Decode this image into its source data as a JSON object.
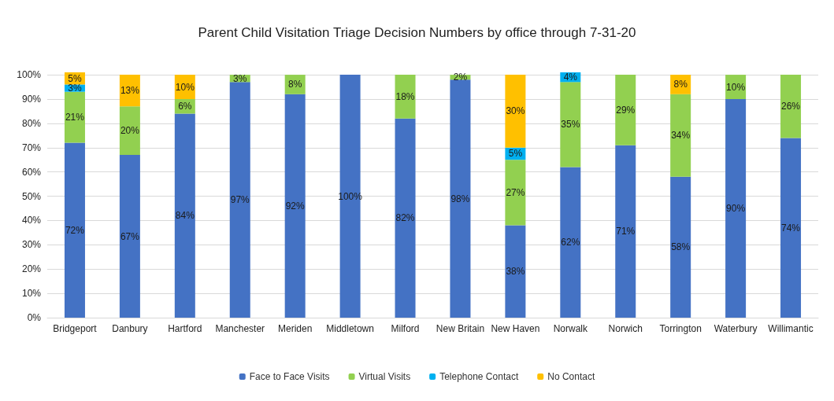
{
  "chart_data": {
    "type": "bar",
    "stacked": true,
    "title": "Parent Child Visitation Triage Decision Numbers by office through 7-31-20",
    "categories": [
      "Bridgeport",
      "Danbury",
      "Hartford",
      "Manchester",
      "Meriden",
      "Middletown",
      "Milford",
      "New Britain",
      "New Haven",
      "Norwalk",
      "Norwich",
      "Torrington",
      "Waterbury",
      "Willimantic"
    ],
    "series": [
      {
        "name": "Face to Face Visits",
        "color": "#4472c4",
        "values": [
          72,
          67,
          84,
          97,
          92,
          100,
          82,
          98,
          38,
          62,
          71,
          58,
          90,
          74
        ],
        "value_labels": [
          "72%",
          "67%",
          "84%",
          "97%",
          "92%",
          "100%",
          "82%",
          "98%",
          "38%",
          "62%",
          "71%",
          "58%",
          "90%",
          "74%"
        ]
      },
      {
        "name": "Virtual Visits",
        "color": "#92d050",
        "values": [
          21,
          20,
          6,
          3,
          8,
          0,
          18,
          2,
          27,
          35,
          29,
          34,
          10,
          26
        ],
        "value_labels": [
          "21%",
          "20%",
          "6%",
          "3%",
          "8%",
          null,
          "18%",
          "2%",
          "27%",
          "35%",
          "29%",
          "34%",
          "10%",
          "26%"
        ]
      },
      {
        "name": "Telephone Contact",
        "color": "#00b0f0",
        "values": [
          3,
          0,
          0,
          0,
          0,
          0,
          0,
          0,
          5,
          4,
          0,
          0,
          0,
          0
        ],
        "value_labels": [
          "3%",
          null,
          null,
          null,
          null,
          null,
          null,
          null,
          "5%",
          "4%",
          null,
          null,
          null,
          null
        ]
      },
      {
        "name": "No Contact",
        "color": "#ffc000",
        "values": [
          5,
          13,
          10,
          0,
          0,
          0,
          0,
          0,
          30,
          0,
          0,
          8,
          0,
          0
        ],
        "value_labels": [
          "5%",
          "13%",
          "10%",
          null,
          null,
          null,
          null,
          null,
          "30%",
          null,
          null,
          "8%",
          null,
          null
        ]
      }
    ],
    "ylim": [
      0,
      101
    ],
    "yticks": [
      {
        "value": 0,
        "label": "0%"
      },
      {
        "value": 10,
        "label": "10%"
      },
      {
        "value": 20,
        "label": "20%"
      },
      {
        "value": 30,
        "label": "30%"
      },
      {
        "value": 40,
        "label": "40%"
      },
      {
        "value": 50,
        "label": "50%"
      },
      {
        "value": 60,
        "label": "60%"
      },
      {
        "value": 70,
        "label": "70%"
      },
      {
        "value": 80,
        "label": "80%"
      },
      {
        "value": 90,
        "label": "90%"
      },
      {
        "value": 100,
        "label": "100%"
      }
    ],
    "grid": "y",
    "legend": "bottom"
  }
}
